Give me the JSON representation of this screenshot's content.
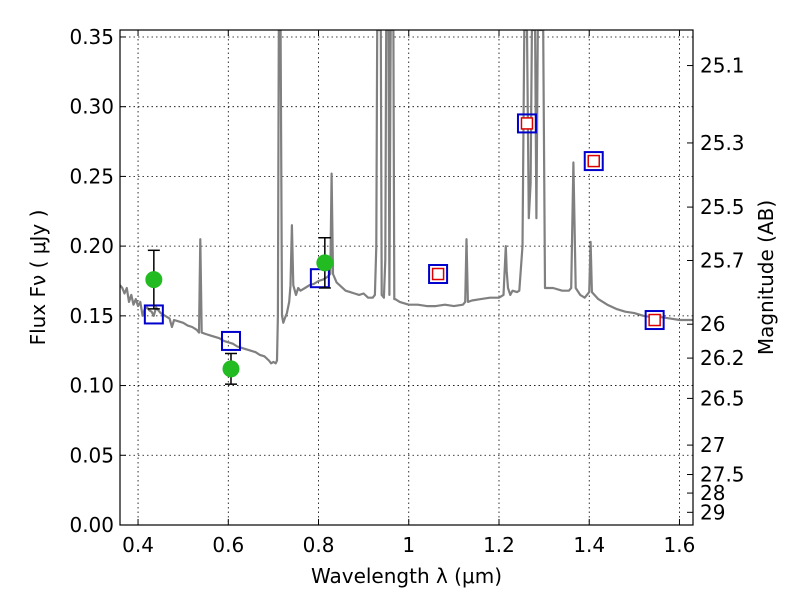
{
  "chart_data": {
    "type": "scatter",
    "xlabel": "Wavelength  λ (μm)",
    "ylabel": "Flux  Fν  ( μJy )",
    "ylabel_right": "Magnitude (AB)",
    "xlim": [
      0.36,
      1.63
    ],
    "ylim": [
      0.0,
      0.355
    ],
    "grid": true,
    "x_ticks": [
      0.4,
      0.6,
      0.8,
      1.0,
      1.2,
      1.4,
      1.6
    ],
    "x_tick_labels": [
      "0.4",
      "0.6",
      "0.8",
      "1",
      "1.2",
      "1.4",
      "1.6"
    ],
    "y_ticks": [
      0.0,
      0.05,
      0.1,
      0.15,
      0.2,
      0.25,
      0.3,
      0.35
    ],
    "y_tick_labels": [
      "0.00",
      "0.05",
      "0.10",
      "0.15",
      "0.20",
      "0.25",
      "0.30",
      "0.35"
    ],
    "right_ticks": [
      {
        "label": "25.1",
        "flux": 0.3295
      },
      {
        "label": "25.3",
        "flux": 0.274
      },
      {
        "label": "25.5",
        "flux": 0.228
      },
      {
        "label": "25.7",
        "flux": 0.1897
      },
      {
        "label": "26",
        "flux": 0.144
      },
      {
        "label": "26.2",
        "flux": 0.1197
      },
      {
        "label": "26.5",
        "flux": 0.0908
      },
      {
        "label": "27",
        "flux": 0.0573
      },
      {
        "label": "27.5",
        "flux": 0.0362
      },
      {
        "label": "28",
        "flux": 0.0229
      },
      {
        "label": "29",
        "flux": 0.0091
      }
    ],
    "model_spectrum": {
      "color": "#808080",
      "points": [
        [
          0.36,
          0.172
        ],
        [
          0.365,
          0.17
        ],
        [
          0.37,
          0.166
        ],
        [
          0.375,
          0.17
        ],
        [
          0.38,
          0.16
        ],
        [
          0.385,
          0.165
        ],
        [
          0.39,
          0.158
        ],
        [
          0.395,
          0.162
        ],
        [
          0.4,
          0.157
        ],
        [
          0.405,
          0.16
        ],
        [
          0.41,
          0.15
        ],
        [
          0.415,
          0.155
        ],
        [
          0.42,
          0.156
        ],
        [
          0.425,
          0.154
        ],
        [
          0.43,
          0.153
        ],
        [
          0.435,
          0.15
        ],
        [
          0.44,
          0.156
        ],
        [
          0.45,
          0.152
        ],
        [
          0.46,
          0.15
        ],
        [
          0.47,
          0.148
        ],
        [
          0.475,
          0.142
        ],
        [
          0.48,
          0.147
        ],
        [
          0.49,
          0.146
        ],
        [
          0.5,
          0.145
        ],
        [
          0.51,
          0.143
        ],
        [
          0.52,
          0.142
        ],
        [
          0.53,
          0.14
        ],
        [
          0.535,
          0.138
        ],
        [
          0.538,
          0.205
        ],
        [
          0.541,
          0.138
        ],
        [
          0.55,
          0.137
        ],
        [
          0.56,
          0.136
        ],
        [
          0.57,
          0.135
        ],
        [
          0.58,
          0.134
        ],
        [
          0.59,
          0.132
        ],
        [
          0.6,
          0.131
        ],
        [
          0.61,
          0.13
        ],
        [
          0.62,
          0.128
        ],
        [
          0.63,
          0.127
        ],
        [
          0.64,
          0.126
        ],
        [
          0.65,
          0.125
        ],
        [
          0.66,
          0.124
        ],
        [
          0.67,
          0.122
        ],
        [
          0.68,
          0.121
        ],
        [
          0.69,
          0.118
        ],
        [
          0.695,
          0.116
        ],
        [
          0.7,
          0.117
        ],
        [
          0.705,
          0.116
        ],
        [
          0.708,
          0.118
        ],
        [
          0.71,
          0.15
        ],
        [
          0.712,
          0.355
        ],
        [
          0.716,
          0.355
        ],
        [
          0.719,
          0.15
        ],
        [
          0.722,
          0.145
        ],
        [
          0.725,
          0.148
        ],
        [
          0.73,
          0.152
        ],
        [
          0.735,
          0.16
        ],
        [
          0.738,
          0.172
        ],
        [
          0.741,
          0.215
        ],
        [
          0.744,
          0.172
        ],
        [
          0.75,
          0.165
        ],
        [
          0.755,
          0.17
        ],
        [
          0.76,
          0.168
        ],
        [
          0.77,
          0.17
        ],
        [
          0.78,
          0.172
        ],
        [
          0.79,
          0.173
        ],
        [
          0.8,
          0.175
        ],
        [
          0.81,
          0.176
        ],
        [
          0.82,
          0.178
        ],
        [
          0.826,
          0.18
        ],
        [
          0.829,
          0.252
        ],
        [
          0.832,
          0.18
        ],
        [
          0.84,
          0.174
        ],
        [
          0.85,
          0.171
        ],
        [
          0.86,
          0.168
        ],
        [
          0.87,
          0.167
        ],
        [
          0.88,
          0.166
        ],
        [
          0.89,
          0.165
        ],
        [
          0.9,
          0.166
        ],
        [
          0.91,
          0.163
        ],
        [
          0.92,
          0.163
        ],
        [
          0.925,
          0.165
        ],
        [
          0.928,
          0.2
        ],
        [
          0.93,
          0.355
        ],
        [
          0.938,
          0.355
        ],
        [
          0.94,
          0.165
        ],
        [
          0.945,
          0.163
        ],
        [
          0.948,
          0.19
        ],
        [
          0.95,
          0.355
        ],
        [
          0.955,
          0.355
        ],
        [
          0.957,
          0.165
        ],
        [
          0.96,
          0.355
        ],
        [
          0.966,
          0.355
        ],
        [
          0.968,
          0.162
        ],
        [
          0.97,
          0.162
        ],
        [
          0.98,
          0.16
        ],
        [
          0.99,
          0.159
        ],
        [
          1.0,
          0.158
        ],
        [
          1.02,
          0.158
        ],
        [
          1.04,
          0.157
        ],
        [
          1.06,
          0.157
        ],
        [
          1.08,
          0.158
        ],
        [
          1.1,
          0.157
        ],
        [
          1.12,
          0.158
        ],
        [
          1.125,
          0.16
        ],
        [
          1.128,
          0.205
        ],
        [
          1.131,
          0.16
        ],
        [
          1.14,
          0.161
        ],
        [
          1.16,
          0.162
        ],
        [
          1.18,
          0.163
        ],
        [
          1.2,
          0.163
        ],
        [
          1.21,
          0.165
        ],
        [
          1.215,
          0.2
        ],
        [
          1.217,
          0.182
        ],
        [
          1.22,
          0.17
        ],
        [
          1.225,
          0.165
        ],
        [
          1.23,
          0.168
        ],
        [
          1.24,
          0.167
        ],
        [
          1.245,
          0.168
        ],
        [
          1.252,
          0.2
        ],
        [
          1.256,
          0.355
        ],
        [
          1.262,
          0.355
        ],
        [
          1.266,
          0.22
        ],
        [
          1.27,
          0.245
        ],
        [
          1.273,
          0.355
        ],
        [
          1.28,
          0.355
        ],
        [
          1.283,
          0.22
        ],
        [
          1.286,
          0.355
        ],
        [
          1.298,
          0.355
        ],
        [
          1.302,
          0.17
        ],
        [
          1.32,
          0.17
        ],
        [
          1.34,
          0.168
        ],
        [
          1.355,
          0.168
        ],
        [
          1.36,
          0.17
        ],
        [
          1.365,
          0.26
        ],
        [
          1.37,
          0.17
        ],
        [
          1.38,
          0.165
        ],
        [
          1.39,
          0.163
        ],
        [
          1.4,
          0.167
        ],
        [
          1.403,
          0.203
        ],
        [
          1.406,
          0.167
        ],
        [
          1.42,
          0.162
        ],
        [
          1.44,
          0.158
        ],
        [
          1.46,
          0.155
        ],
        [
          1.48,
          0.153
        ],
        [
          1.5,
          0.152
        ],
        [
          1.52,
          0.15
        ],
        [
          1.54,
          0.149
        ],
        [
          1.56,
          0.149
        ],
        [
          1.58,
          0.148
        ],
        [
          1.6,
          0.147
        ],
        [
          1.63,
          0.147
        ]
      ]
    },
    "observed": {
      "color": "#22bb22",
      "points": [
        {
          "x": 0.435,
          "y": 0.176,
          "err": 0.021
        },
        {
          "x": 0.606,
          "y": 0.112,
          "err": 0.011
        },
        {
          "x": 0.814,
          "y": 0.188,
          "err": 0.018
        }
      ]
    },
    "model_bands": {
      "color": "#0000cc",
      "points": [
        {
          "x": 0.435,
          "y": 0.151
        },
        {
          "x": 0.606,
          "y": 0.132
        },
        {
          "x": 0.803,
          "y": 0.177
        },
        {
          "x": 1.065,
          "y": 0.18
        },
        {
          "x": 1.262,
          "y": 0.288
        },
        {
          "x": 1.41,
          "y": 0.261
        },
        {
          "x": 1.545,
          "y": 0.147
        }
      ]
    },
    "red_markers": {
      "color": "#dd0000",
      "points": [
        {
          "x": 1.065,
          "y": 0.18
        },
        {
          "x": 1.262,
          "y": 0.288
        },
        {
          "x": 1.41,
          "y": 0.261
        },
        {
          "x": 1.545,
          "y": 0.147
        }
      ]
    }
  }
}
